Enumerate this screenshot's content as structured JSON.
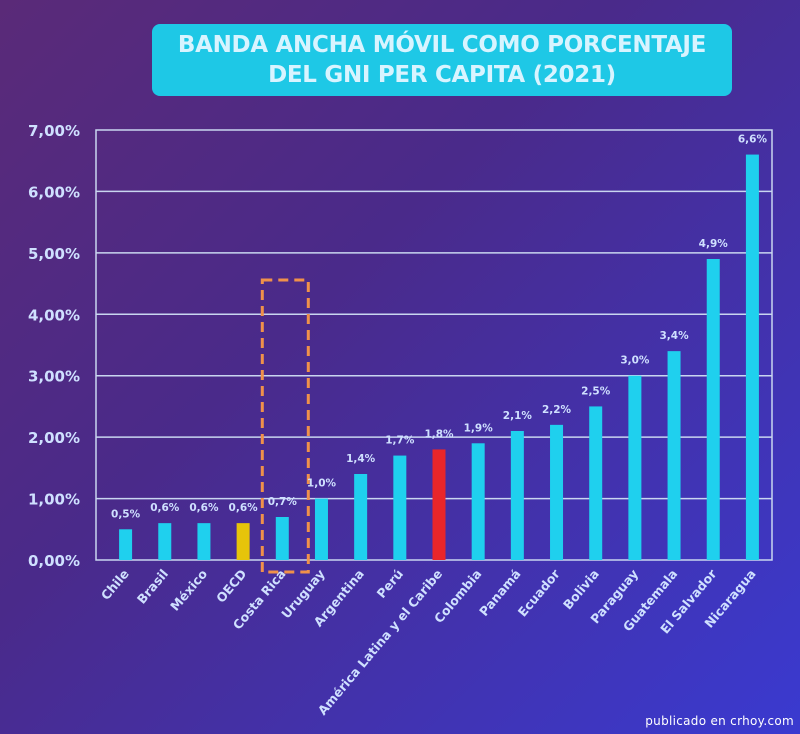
{
  "title": {
    "line1": "BANDA ANCHA MÓVIL COMO PORCENTAJE",
    "line2": "DEL GNI PER CAPITA (2021)"
  },
  "watermark": "publicado en crhoy.com",
  "colors": {
    "bar_default": "#1fd0ee",
    "bar_oecd": "#e6c40a",
    "bar_latam": "#e8262a",
    "highlight_box": "#f0914a",
    "grid": "#c9d6f0",
    "text": "#cfe0ff"
  },
  "chart_data": {
    "type": "bar",
    "title": "BANDA ANCHA MÓVIL COMO PORCENTAJE DEL GNI PER CAPITA (2021)",
    "xlabel": "",
    "ylabel": "",
    "ylim": [
      0,
      7
    ],
    "yticks": [
      "0,00%",
      "1,00%",
      "2,00%",
      "3,00%",
      "4,00%",
      "5,00%",
      "6,00%",
      "7,00%"
    ],
    "grid": true,
    "categories": [
      "Chile",
      "Brasil",
      "México",
      "OECD",
      "Costa Rica",
      "Uruguay",
      "Argentina",
      "Perú",
      "América Latina y el Caribe",
      "Colombia",
      "Panamá",
      "Ecuador",
      "Bolivia",
      "Paraguay",
      "Guatemala",
      "El Salvador",
      "Nicaragua"
    ],
    "values": [
      0.5,
      0.6,
      0.6,
      0.6,
      0.7,
      1.0,
      1.4,
      1.7,
      1.8,
      1.9,
      2.1,
      2.2,
      2.5,
      3.0,
      3.4,
      4.9,
      6.6
    ],
    "labels": [
      "0,5%",
      "0,6%",
      "0,6%",
      "0,6%",
      "0,7%",
      "1,0%",
      "1,4%",
      "1,7%",
      "1,8%",
      "1,9%",
      "2,1%",
      "2,2%",
      "2,5%",
      "3,0%",
      "3,4%",
      "4,9%",
      "6,6%"
    ],
    "highlighted": {
      "OECD": "yellow",
      "América Latina y el Caribe": "red",
      "Costa Rica": "dashed-orange-box"
    }
  }
}
